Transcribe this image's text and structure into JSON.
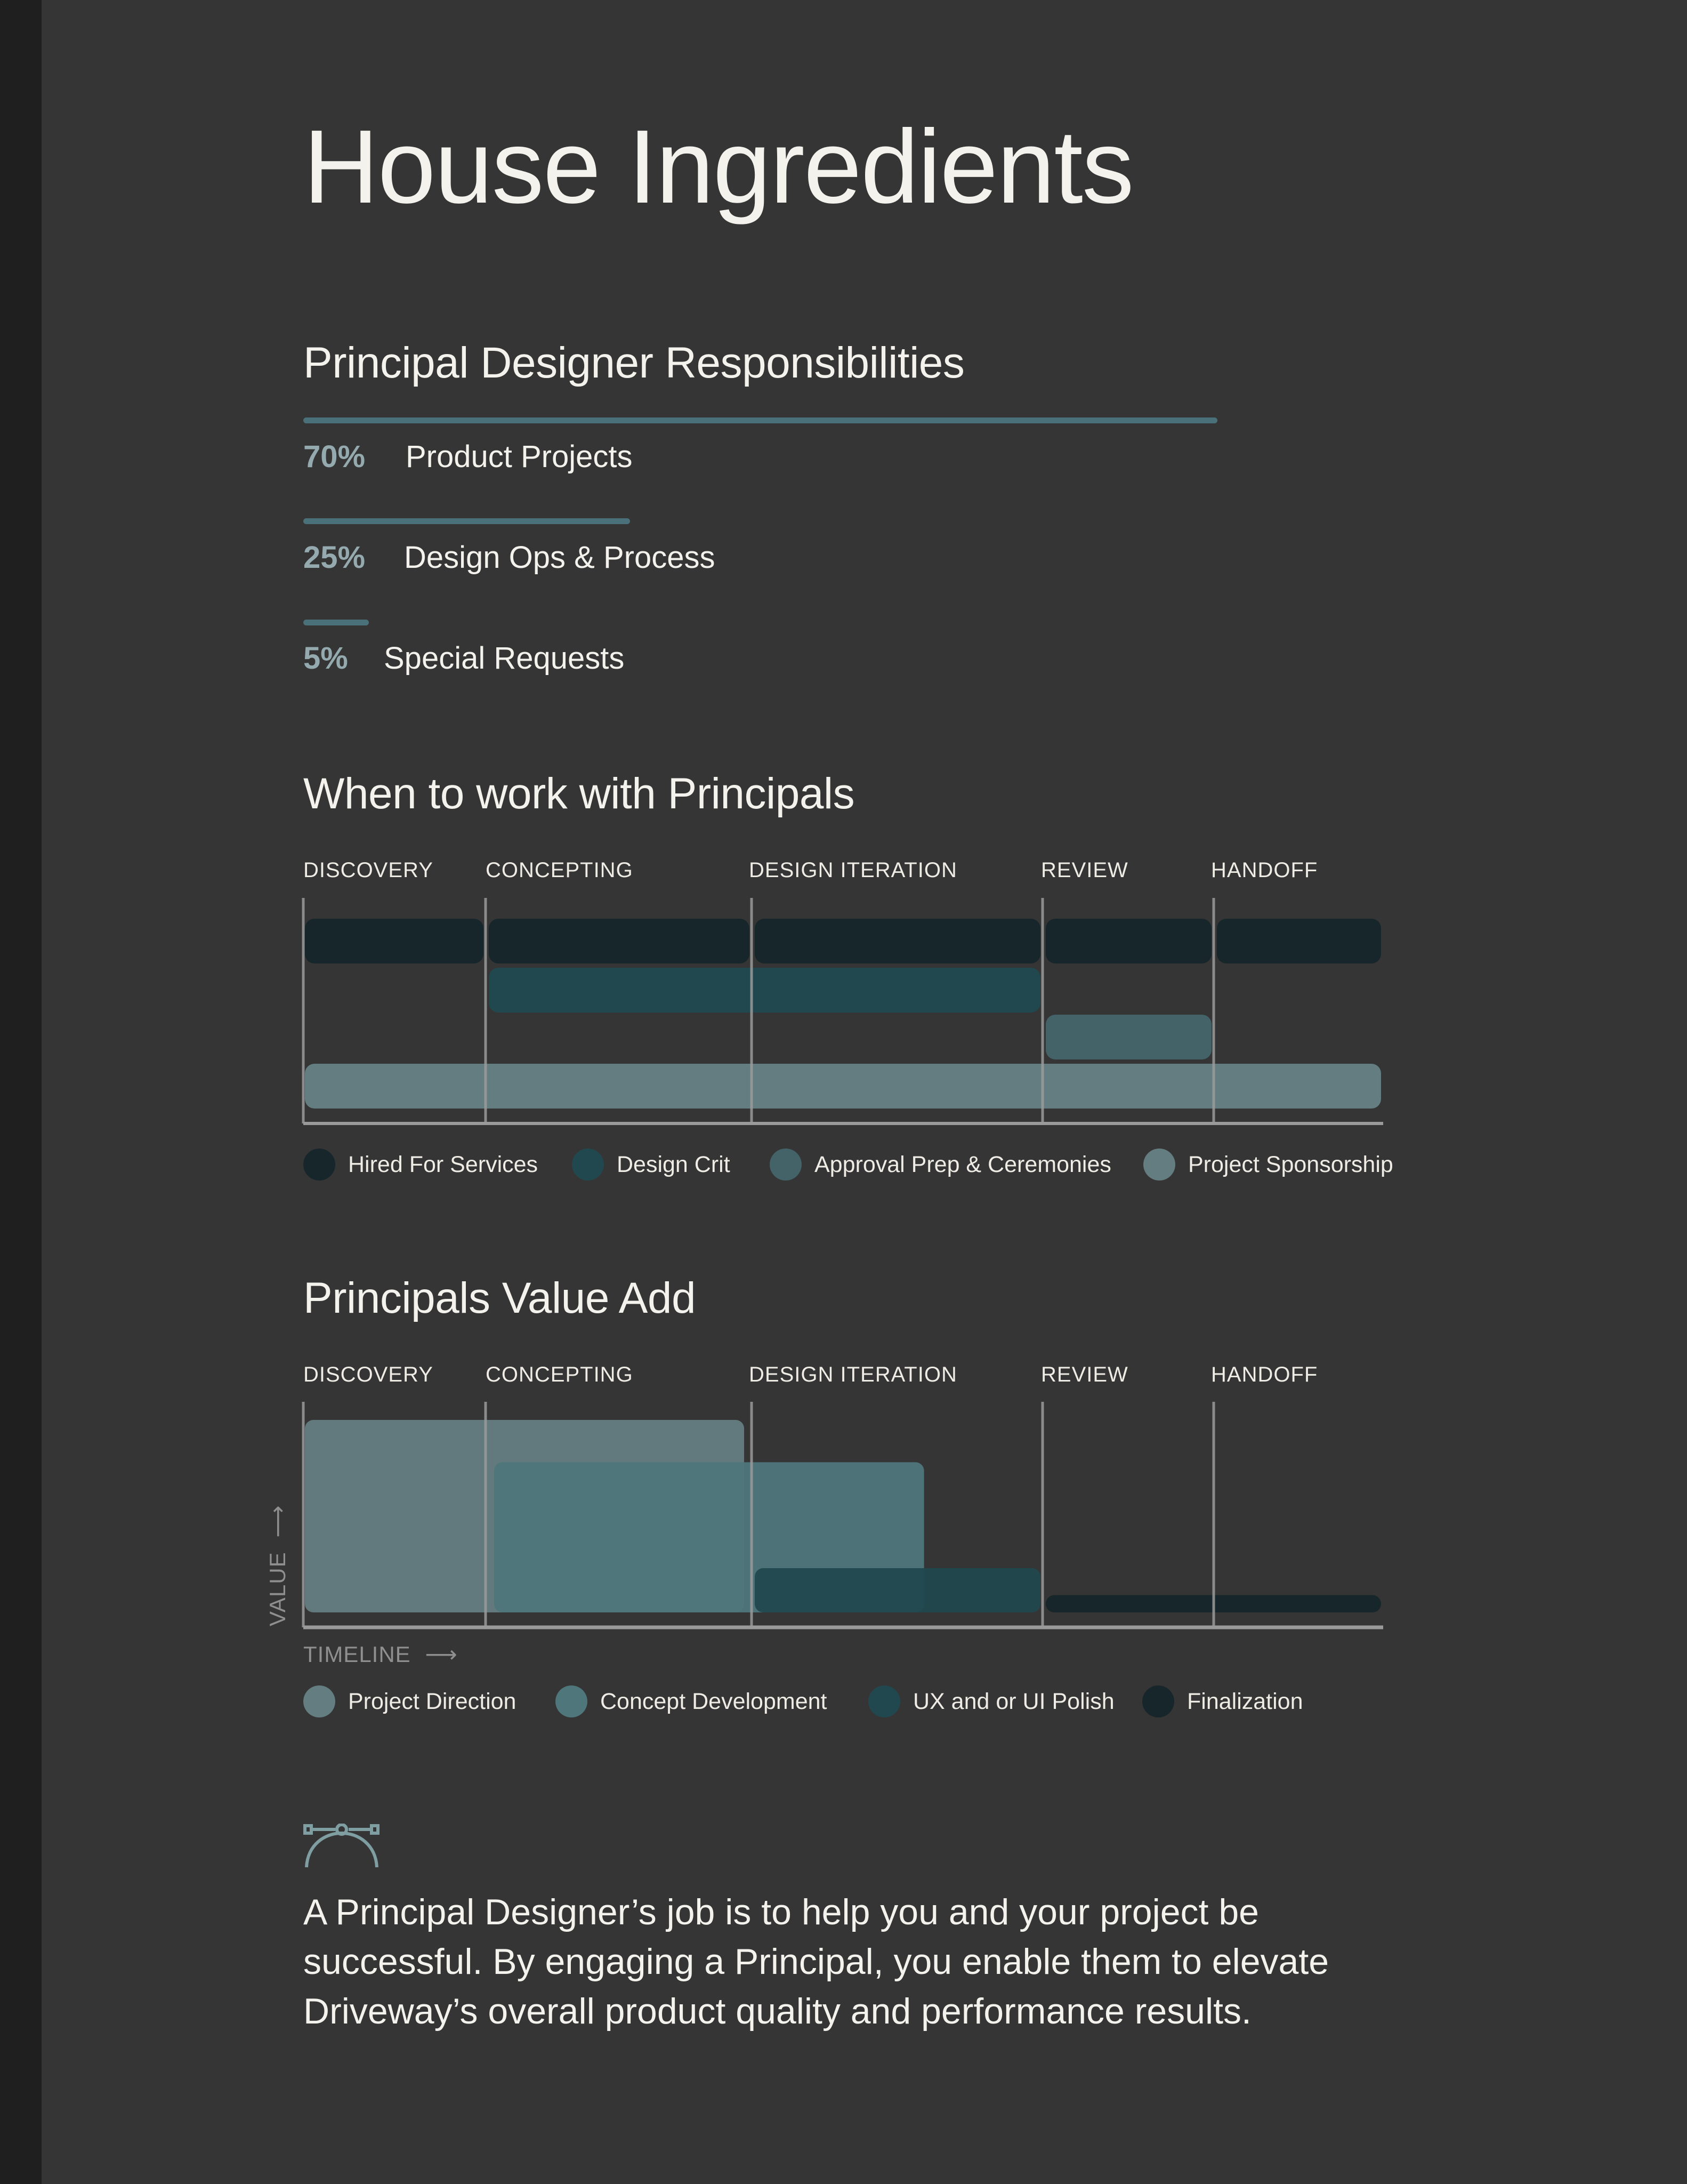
{
  "page": {
    "title": "House Ingredients",
    "colors": {
      "background": "#353535",
      "left_strip": "#1f1f1f",
      "text": "#f4f2ec",
      "accent_bar": "#4a7079",
      "percent_text": "#94aaae",
      "axis": "#9a9a9a"
    }
  },
  "responsibilities": {
    "heading": "Principal Designer Responsibilities",
    "items": [
      {
        "percent_label": "70%",
        "value": 70,
        "label": "Product Projects"
      },
      {
        "percent_label": "25%",
        "value": 25,
        "label": "Design Ops & Process"
      },
      {
        "percent_label": "5%",
        "value": 5,
        "label": "Special Requests"
      }
    ]
  },
  "chart_data": [
    {
      "type": "gantt",
      "title": "When to work with Principals",
      "phases": [
        "DISCOVERY",
        "CONCEPTING",
        "DESIGN ITERATION",
        "REVIEW",
        "HANDOFF"
      ],
      "legend_placement": "bottom",
      "series": [
        {
          "name": "Hired For Services",
          "color": "#17262a",
          "segments": [
            [
              0,
              1
            ],
            [
              1,
              2
            ],
            [
              2,
              3
            ],
            [
              3,
              4
            ],
            [
              4,
              5
            ]
          ]
        },
        {
          "name": "Design Crit",
          "color": "#21484e",
          "segments": [
            [
              1,
              3
            ]
          ]
        },
        {
          "name": "Approval Prep & Ceremonies",
          "color": "#436368",
          "segments": [
            [
              3,
              4
            ]
          ]
        },
        {
          "name": "Project Sponsorship",
          "color": "#647d80",
          "segments": [
            [
              0,
              5
            ]
          ]
        }
      ]
    },
    {
      "type": "area",
      "title": "Principals Value Add",
      "phases": [
        "DISCOVERY",
        "CONCEPTING",
        "DESIGN ITERATION",
        "REVIEW",
        "HANDOFF"
      ],
      "xlabel": "TIMELINE",
      "ylabel": "VALUE",
      "ylim": [
        0,
        100
      ],
      "legend_placement": "bottom",
      "series": [
        {
          "name": "Project Direction",
          "color": "#647d80",
          "start": 0,
          "end": 1.98,
          "value": 100
        },
        {
          "name": "Concept Development",
          "color": "#4e767b",
          "start": 1.02,
          "end": 2.6,
          "value": 78
        },
        {
          "name": "UX and or UI Polish",
          "color": "#21484e",
          "start": 2.0,
          "end": 3.0,
          "value": 23
        },
        {
          "name": "Finalization",
          "color": "#17262a",
          "start": 3.0,
          "end": 5.0,
          "value": 9
        }
      ]
    }
  ],
  "closing": {
    "icon": "bezier-pen-icon",
    "lines": [
      "A Principal Designer’s job is to help you and your project be",
      "successful. By engaging a Principal, you enable them to elevate",
      "Driveway’s overall product quality and performance results."
    ]
  }
}
